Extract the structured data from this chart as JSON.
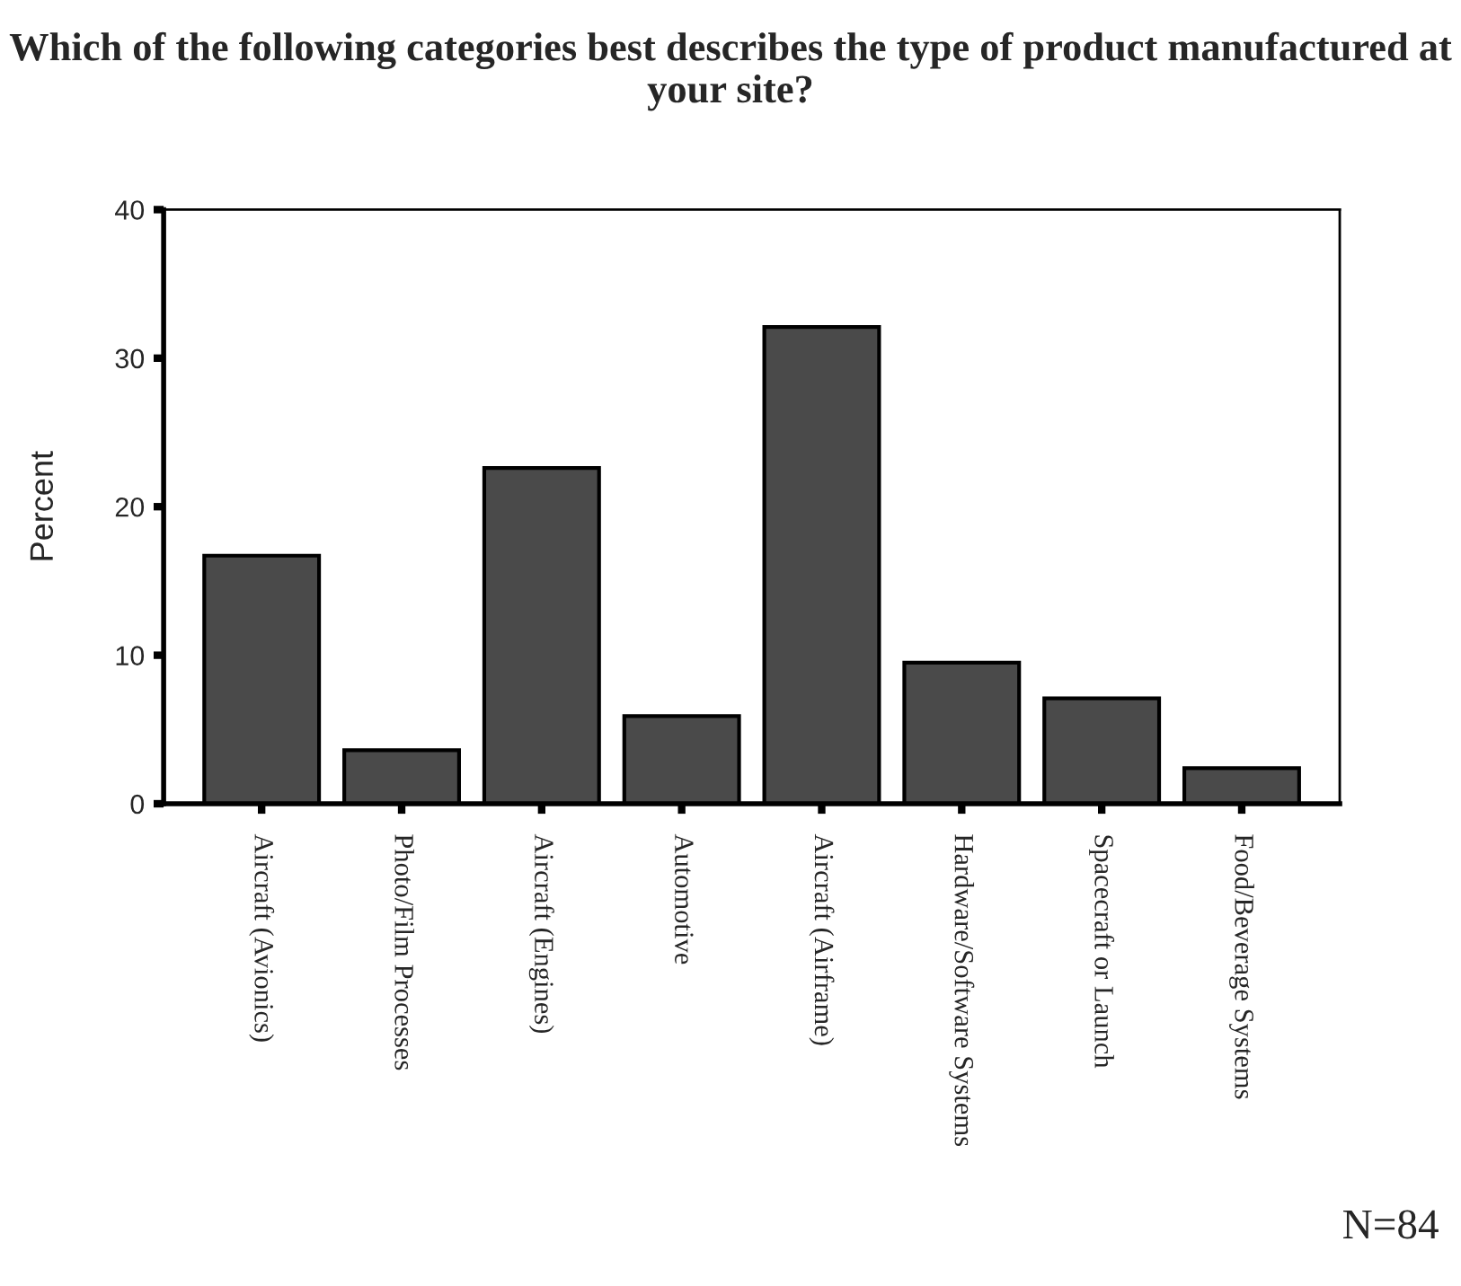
{
  "chart_data": {
    "type": "bar",
    "title": "Which of the following categories best describes the type of product manufactured at your site?",
    "ylabel": "Percent",
    "categories": [
      "Aircraft (Avionics)",
      "Photo/Film Processes",
      "Aircraft (Engines)",
      "Automotive",
      "Aircraft (Airframe)",
      "Hardware/Software Systems",
      "Spacecraft or Launch",
      "Food/Beverage Systems"
    ],
    "values": [
      16.7,
      3.6,
      22.6,
      5.9,
      32.1,
      9.5,
      7.1,
      2.4
    ],
    "color": "#4a4a4a",
    "ylim": [
      0,
      40
    ],
    "yticks": [
      0,
      10,
      20,
      30,
      40
    ],
    "annotations": [
      "N=84"
    ]
  }
}
